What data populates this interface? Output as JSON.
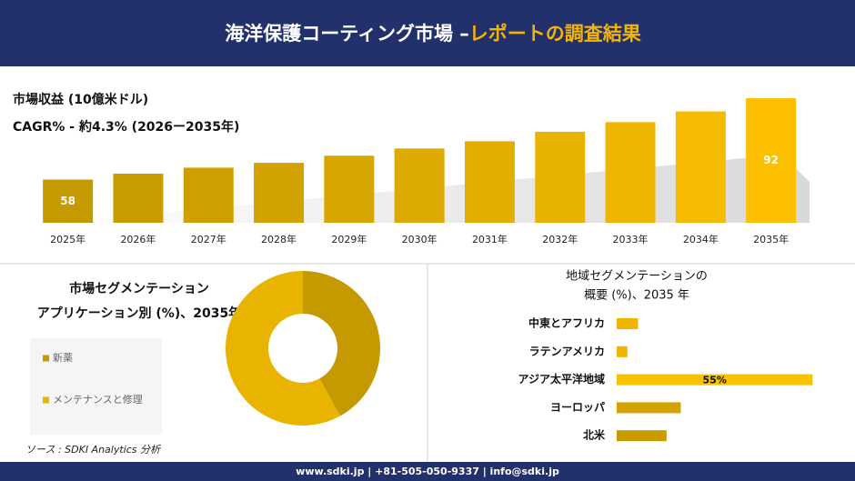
{
  "header": {
    "title_main": "海洋保護コーティング市場 –",
    "title_accent": "レポートの調査結果"
  },
  "chart_data": [
    {
      "type": "bar",
      "title": "市場収益 (10億米ドル)",
      "subtitle": "CAGR% - 約4.3% (2026ー2035年)",
      "categories": [
        "2025年",
        "2026年",
        "2027年",
        "2028年",
        "2029年",
        "2030年",
        "2031年",
        "2032年",
        "2033年",
        "2034年",
        "2035年"
      ],
      "values": [
        58,
        60.5,
        63,
        65,
        68,
        71,
        74,
        78,
        82,
        86.5,
        92
      ],
      "value_labels": [
        "58",
        null,
        null,
        null,
        null,
        null,
        null,
        null,
        null,
        null,
        "92"
      ],
      "colors": [
        "#c59a00",
        "#c99d00",
        "#cda000",
        "#d2a300",
        "#d7a700",
        "#dcaa00",
        "#e2ae00",
        "#e8b200",
        "#eeb600",
        "#f5bb00",
        "#fcc000"
      ],
      "ylim": [
        40,
        92
      ]
    },
    {
      "type": "donut",
      "title": "市場セグメンテーション",
      "subtitle": "アプリケーション別 (%)、2035年",
      "categories": [
        "新薬",
        "メンテナンスと修理"
      ],
      "values": [
        42,
        58
      ],
      "colors": [
        "#c49a00",
        "#e8b400"
      ]
    },
    {
      "type": "hbar",
      "title": "地域セグメンテーションの",
      "subtitle": "概要 (%)、2035 年",
      "categories": [
        "中東とアフリカ",
        "ラテンアメリカ",
        "アジア太平洋地域",
        "ヨーロッパ",
        "北米"
      ],
      "values": [
        6,
        3,
        55,
        18,
        14
      ],
      "value_labels": [
        null,
        null,
        "55%",
        null,
        null
      ],
      "colors": [
        "#f0b400",
        "#f0b400",
        "#f7c200",
        "#d4a200",
        "#c89b00"
      ],
      "xlim": [
        0,
        60
      ]
    }
  ],
  "source": "ソース : SDKI Analytics 分析",
  "footer": "www.sdki.jp | +81-505-050-9337 | info@sdki.jp"
}
